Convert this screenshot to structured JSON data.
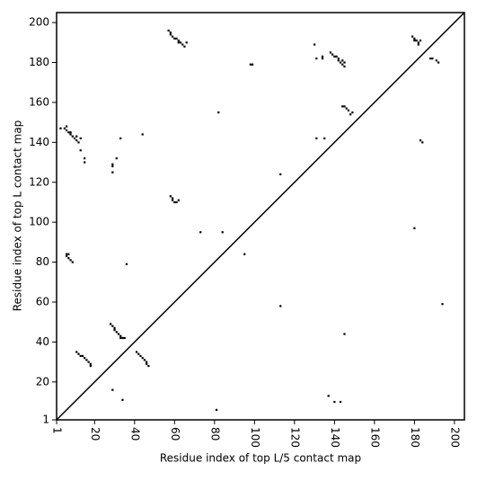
{
  "chart_data": {
    "type": "scatter",
    "marker": "square",
    "color": "#000000",
    "diagonal": true,
    "xlabel": "Residue index of top L/5 contact map",
    "ylabel": "Residue index of top L contact map",
    "xlim": [
      1,
      205
    ],
    "ylim": [
      1,
      205
    ],
    "xticks": [
      1,
      20,
      40,
      60,
      80,
      100,
      120,
      140,
      160,
      180,
      200
    ],
    "yticks": [
      1,
      20,
      40,
      60,
      80,
      100,
      120,
      140,
      160,
      180,
      200
    ],
    "x": [
      57,
      58,
      58,
      59,
      60,
      61,
      62,
      62,
      63,
      64,
      65,
      66,
      98,
      99,
      130,
      131,
      134,
      134,
      138,
      139,
      140,
      141,
      142,
      142,
      143,
      144,
      144,
      145,
      145,
      179,
      180,
      180,
      181,
      182,
      182,
      183,
      188,
      189,
      191,
      192,
      3,
      5,
      6,
      6,
      7,
      8,
      8,
      9,
      10,
      11,
      11,
      12,
      13,
      13,
      15,
      15,
      29,
      29,
      29,
      31,
      33,
      44,
      82,
      131,
      135,
      144,
      145,
      146,
      147,
      148,
      149,
      183,
      184,
      58,
      59,
      59,
      60,
      61,
      62,
      113,
      6,
      7,
      6,
      7,
      8,
      9,
      36,
      73,
      84,
      95,
      28,
      29,
      30,
      30,
      31,
      32,
      33,
      33,
      34,
      35,
      41,
      42,
      43,
      44,
      45,
      46,
      46,
      47,
      11,
      12,
      13,
      14,
      15,
      16,
      17,
      18,
      18,
      29,
      34,
      81,
      113,
      137,
      140,
      143,
      145,
      180,
      194
    ],
    "y": [
      196,
      195,
      194,
      193,
      192,
      192,
      191,
      190,
      190,
      189,
      188,
      190,
      179,
      179,
      189,
      182,
      182,
      183,
      185,
      184,
      183,
      183,
      182,
      181,
      180,
      181,
      179,
      178,
      180,
      193,
      192,
      191,
      191,
      190,
      189,
      191,
      182,
      182,
      181,
      180,
      147,
      147,
      148,
      146,
      145,
      145,
      144,
      143,
      142,
      143,
      141,
      140,
      142,
      136,
      132,
      130,
      129,
      128,
      125,
      132,
      142,
      144,
      155,
      142,
      142,
      158,
      158,
      157,
      156,
      154,
      155,
      141,
      140,
      113,
      112,
      111,
      110,
      110,
      111,
      124,
      84,
      84,
      83,
      82,
      81,
      80,
      79,
      95,
      95,
      84,
      49,
      48,
      47,
      46,
      45,
      44,
      43,
      42,
      42,
      42,
      35,
      34,
      33,
      32,
      31,
      30,
      29,
      28,
      35,
      34,
      33,
      33,
      32,
      31,
      30,
      29,
      28,
      16,
      11,
      6,
      58,
      13,
      10,
      10,
      44,
      97,
      59
    ]
  }
}
